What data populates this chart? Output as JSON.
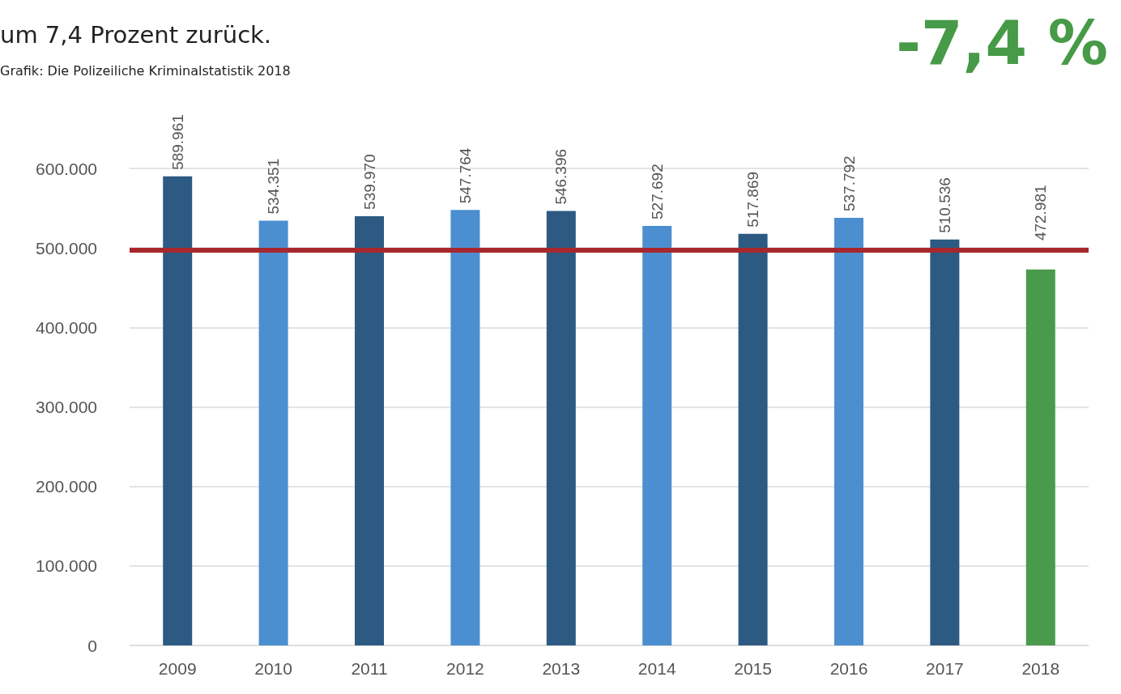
{
  "chart_data": {
    "type": "bar",
    "title": "um 7,4 Prozent zurück.",
    "annotations": [
      "Grafik: Die Polizeiliche Kriminalstatistik 2018",
      "-7,4 %"
    ],
    "categories": [
      "2009",
      "2010",
      "2011",
      "2012",
      "2013",
      "2014",
      "2015",
      "2016",
      "2017",
      "2018"
    ],
    "values": [
      589961,
      534351,
      539970,
      547764,
      546396,
      527692,
      517869,
      537792,
      510536,
      472981
    ],
    "value_labels": [
      "589.961",
      "534.351",
      "539.970",
      "547.764",
      "546.396",
      "527.692",
      "517.869",
      "537.792",
      "510.536",
      "472.981"
    ],
    "colors": [
      "#2c5a82",
      "#4b8fd0",
      "#2c5a82",
      "#4b8fd0",
      "#2c5a82",
      "#4b8fd0",
      "#2c5a82",
      "#4b8fd0",
      "#2c5a82",
      "#4a9a4c"
    ],
    "ylim": [
      0,
      600000
    ],
    "yticks": [
      {
        "value": 0,
        "label": "0"
      },
      {
        "value": 100000,
        "label": "100.000"
      },
      {
        "value": 200000,
        "label": "200.000"
      },
      {
        "value": 300000,
        "label": "300.000"
      },
      {
        "value": 400000,
        "label": "400.000"
      },
      {
        "value": 500000,
        "label": "500.000"
      },
      {
        "value": 600000,
        "label": "600.000"
      }
    ],
    "ref_lines": [
      {
        "axis": "y",
        "value": 497000,
        "color": "#a8272d"
      }
    ],
    "grid": "y"
  }
}
